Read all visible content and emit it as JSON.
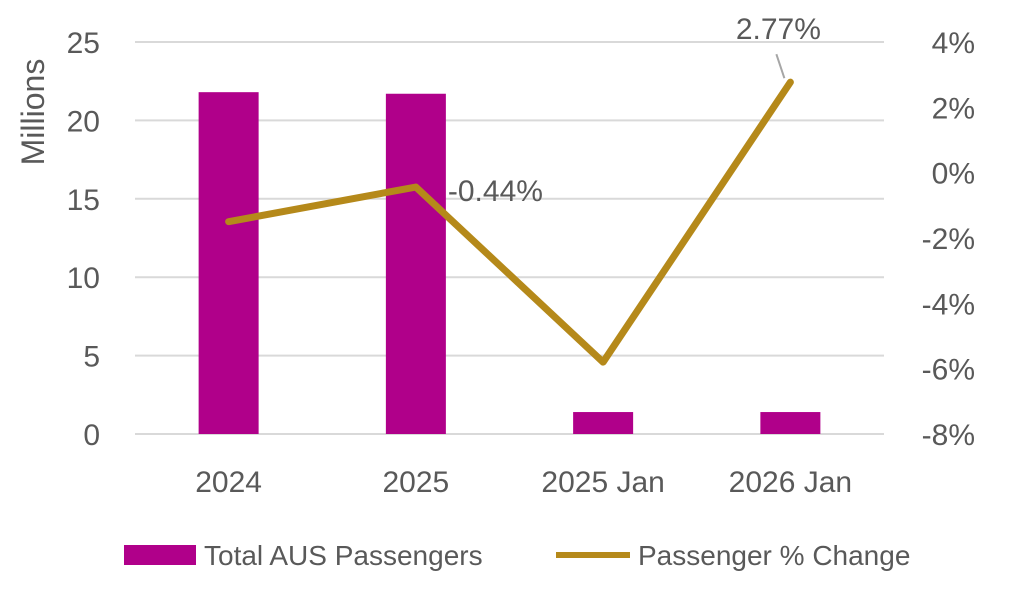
{
  "chart_data": {
    "type": "bar",
    "categories": [
      "2024",
      "2025",
      "2025 Jan",
      "2026 Jan"
    ],
    "ylabel": "Millions",
    "ylim": [
      0,
      25
    ],
    "yticks": [
      "0",
      "5",
      "10",
      "15",
      "20",
      "25"
    ],
    "y2lim": [
      -8,
      4
    ],
    "y2ticks": [
      "-8%",
      "-6%",
      "-4%",
      "-2%",
      "0%",
      "2%",
      "4%"
    ],
    "grid": true,
    "legend_position": "bottom",
    "series": [
      {
        "name": "Total AUS Passengers",
        "type": "bar",
        "axis": "left",
        "color": "#B0008A",
        "values": [
          21.8,
          21.7,
          1.4,
          1.4
        ]
      },
      {
        "name": "Passenger % Change",
        "type": "line",
        "axis": "right",
        "color": "#B5891A",
        "values": [
          -1.5,
          -0.44,
          -5.8,
          2.77
        ]
      }
    ],
    "data_labels": [
      {
        "series": 1,
        "index": 1,
        "text": "-0.44%"
      },
      {
        "series": 1,
        "index": 3,
        "text": "2.77%"
      }
    ]
  }
}
